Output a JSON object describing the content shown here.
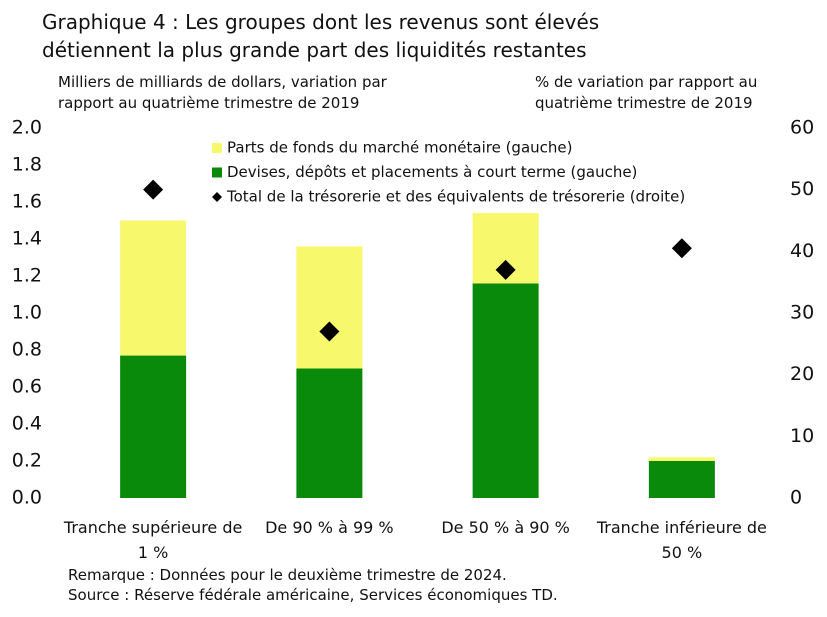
{
  "chart_data": {
    "type": "bar",
    "stacked": true,
    "title": "Graphique 4 : Les groupes dont les revenus sont élevés détiennent la plus grande part des liquidités restantes",
    "y_label": "Milliers de milliards de dollars, variation par rapport au quatrième trimestre de 2019",
    "y2_label": "% de variation par rapport au quatrième trimestre de 2019",
    "categories": [
      "Tranche supérieure de 1 %",
      "De 90 % à 99 %",
      "De 50 % à 90 %",
      "Tranche inférieure de 50 %"
    ],
    "series": [
      {
        "name": "Devises, dépôts et placements à court terme (gauche)",
        "color": "#0a8a0a",
        "values": [
          0.77,
          0.7,
          1.16,
          0.2
        ]
      },
      {
        "name": "Parts de fonds du marché monétaire (gauche)",
        "color": "#f8f86c",
        "values": [
          0.73,
          0.66,
          0.38,
          0.02
        ]
      },
      {
        "name": "Total de la trésorerie et des équivalents de trésorerie (droite)",
        "color": "#000000",
        "axis": "y2",
        "marker": "diamond",
        "values": [
          50,
          27,
          37,
          40.5
        ]
      }
    ],
    "ylim": [
      0,
      2
    ],
    "yticks": [
      {
        "value": 0,
        "label": "0.0"
      },
      0.2,
      0.4,
      0.6,
      0.8,
      {
        "value": 1,
        "label": "1.0"
      },
      1.2,
      1.4,
      1.6,
      1.8,
      {
        "value": 2,
        "label": "2.0"
      }
    ],
    "y2lim": [
      0,
      60
    ],
    "y2ticks": [
      0,
      10,
      20,
      30,
      40,
      50,
      60
    ],
    "note": "Remarque : Données pour le deuxième trimestre de 2024.",
    "source": "Source : Réserve fédérale américaine, Services économiques TD."
  }
}
